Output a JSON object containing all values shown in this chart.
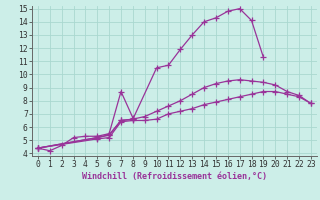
{
  "background_color": "#cceee8",
  "grid_color": "#aad8d0",
  "line_color": "#993399",
  "marker": "+",
  "markersize": 4,
  "linewidth": 0.9,
  "xlim": [
    -0.5,
    23.5
  ],
  "ylim": [
    3.8,
    15.2
  ],
  "yticks": [
    4,
    5,
    6,
    7,
    8,
    9,
    10,
    11,
    12,
    13,
    14,
    15
  ],
  "xticks": [
    0,
    1,
    2,
    3,
    4,
    5,
    6,
    7,
    8,
    9,
    10,
    11,
    12,
    13,
    14,
    15,
    16,
    17,
    18,
    19,
    20,
    21,
    22,
    23
  ],
  "xlabel": "Windchill (Refroidissement éolien,°C)",
  "xlabel_fontsize": 6.0,
  "tick_fontsize": 5.8,
  "series": [
    {
      "x": [
        0,
        1,
        2,
        3,
        4,
        5,
        6,
        7,
        8
      ],
      "y": [
        4.4,
        4.2,
        4.6,
        5.2,
        5.3,
        5.3,
        5.5,
        8.7,
        6.7
      ]
    },
    {
      "x": [
        0,
        5,
        6,
        7,
        8,
        9,
        10,
        11,
        12,
        13,
        14,
        15,
        16,
        17,
        18,
        19,
        20,
        21,
        22,
        23
      ],
      "y": [
        4.4,
        5.1,
        5.2,
        6.4,
        6.5,
        6.5,
        6.6,
        7.0,
        7.2,
        7.4,
        7.7,
        7.9,
        8.1,
        8.3,
        8.5,
        8.7,
        8.7,
        8.5,
        8.3,
        7.8
      ]
    },
    {
      "x": [
        0,
        5,
        6,
        7,
        8,
        10,
        11,
        12,
        13,
        14,
        15,
        16,
        17,
        18,
        19
      ],
      "y": [
        4.4,
        5.2,
        5.4,
        6.5,
        6.6,
        10.5,
        10.7,
        11.9,
        13.0,
        14.0,
        14.3,
        14.8,
        15.0,
        14.1,
        11.3
      ]
    },
    {
      "x": [
        0,
        5,
        6,
        7,
        8,
        9,
        10,
        11,
        12,
        13,
        14,
        15,
        16,
        17,
        18,
        19,
        20,
        21,
        22,
        23
      ],
      "y": [
        4.4,
        5.2,
        5.4,
        6.5,
        6.6,
        6.8,
        7.2,
        7.6,
        8.0,
        8.5,
        9.0,
        9.3,
        9.5,
        9.6,
        9.5,
        9.4,
        9.2,
        8.7,
        8.4,
        7.8
      ]
    }
  ]
}
